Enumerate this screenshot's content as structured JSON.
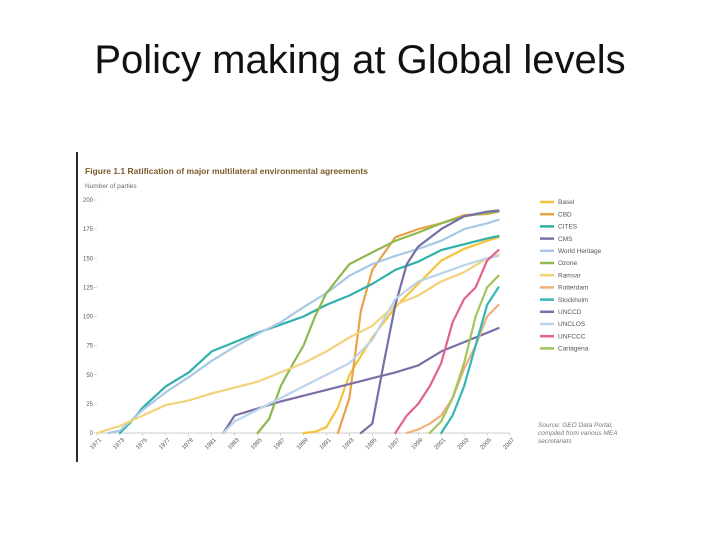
{
  "slide": {
    "title": "Policy making at Global  levels"
  },
  "chart_data": {
    "type": "line",
    "title": "Figure 1.1 Ratification of major multilateral environmental agreements",
    "ylabel": "Number of parties",
    "xlabel": "",
    "ylim": [
      0,
      200
    ],
    "xlim": [
      1971,
      2007
    ],
    "yticks": [
      0,
      25,
      50,
      75,
      100,
      125,
      150,
      175,
      200
    ],
    "xticks": [
      1971,
      1973,
      1975,
      1977,
      1979,
      1981,
      1983,
      1985,
      1987,
      1989,
      1991,
      1993,
      1995,
      1997,
      1999,
      2001,
      2003,
      2005,
      2007
    ],
    "source_note": "Source: GEO Data Portal, compiled from various MEA secretariats",
    "legend_position": "right",
    "series": [
      {
        "name": "Basel",
        "color": "#f5c43a",
        "points": [
          [
            1989,
            0
          ],
          [
            1990,
            1
          ],
          [
            1991,
            5
          ],
          [
            1992,
            22
          ],
          [
            1993,
            50
          ],
          [
            1995,
            82
          ],
          [
            1997,
            108
          ],
          [
            1999,
            128
          ],
          [
            2001,
            148
          ],
          [
            2003,
            158
          ],
          [
            2005,
            165
          ],
          [
            2006,
            168
          ]
        ]
      },
      {
        "name": "CBD",
        "color": "#e8a24a",
        "points": [
          [
            1992,
            0
          ],
          [
            1993,
            30
          ],
          [
            1994,
            105
          ],
          [
            1995,
            140
          ],
          [
            1997,
            168
          ],
          [
            1999,
            175
          ],
          [
            2001,
            180
          ],
          [
            2003,
            187
          ],
          [
            2005,
            188
          ],
          [
            2006,
            190
          ]
        ]
      },
      {
        "name": "CITES",
        "color": "#2fb0a8",
        "points": [
          [
            1973,
            0
          ],
          [
            1974,
            10
          ],
          [
            1975,
            22
          ],
          [
            1977,
            40
          ],
          [
            1979,
            52
          ],
          [
            1981,
            70
          ],
          [
            1983,
            78
          ],
          [
            1985,
            86
          ],
          [
            1987,
            93
          ],
          [
            1989,
            100
          ],
          [
            1991,
            110
          ],
          [
            1993,
            118
          ],
          [
            1995,
            128
          ],
          [
            1997,
            140
          ],
          [
            1999,
            147
          ],
          [
            2001,
            157
          ],
          [
            2003,
            162
          ],
          [
            2005,
            167
          ],
          [
            2006,
            169
          ]
        ]
      },
      {
        "name": "CMS",
        "color": "#7a6fa8",
        "points": [
          [
            1982,
            0
          ],
          [
            1983,
            15
          ],
          [
            1985,
            21
          ],
          [
            1987,
            27
          ],
          [
            1989,
            32
          ],
          [
            1991,
            37
          ],
          [
            1993,
            42
          ],
          [
            1995,
            47
          ],
          [
            1997,
            52
          ],
          [
            1999,
            58
          ],
          [
            2001,
            70
          ],
          [
            2003,
            78
          ],
          [
            2005,
            86
          ],
          [
            2006,
            90
          ]
        ]
      },
      {
        "name": "World Heritage",
        "color": "#a9c8e4",
        "points": [
          [
            1972,
            0
          ],
          [
            1973,
            2
          ],
          [
            1975,
            20
          ],
          [
            1977,
            35
          ],
          [
            1979,
            48
          ],
          [
            1981,
            62
          ],
          [
            1983,
            74
          ],
          [
            1985,
            85
          ],
          [
            1987,
            95
          ],
          [
            1989,
            108
          ],
          [
            1991,
            120
          ],
          [
            1993,
            135
          ],
          [
            1995,
            145
          ],
          [
            1997,
            152
          ],
          [
            1999,
            158
          ],
          [
            2001,
            165
          ],
          [
            2003,
            175
          ],
          [
            2005,
            180
          ],
          [
            2006,
            183
          ]
        ]
      },
      {
        "name": "Ozone",
        "color": "#8fb84e",
        "points": [
          [
            1985,
            0
          ],
          [
            1986,
            12
          ],
          [
            1987,
            40
          ],
          [
            1988,
            58
          ],
          [
            1989,
            75
          ],
          [
            1990,
            100
          ],
          [
            1991,
            120
          ],
          [
            1993,
            145
          ],
          [
            1995,
            155
          ],
          [
            1997,
            165
          ],
          [
            1999,
            172
          ],
          [
            2001,
            180
          ],
          [
            2003,
            186
          ],
          [
            2005,
            189
          ],
          [
            2006,
            190
          ]
        ]
      },
      {
        "name": "Ramsar",
        "color": "#f2d27a",
        "points": [
          [
            1971,
            0
          ],
          [
            1973,
            6
          ],
          [
            1975,
            15
          ],
          [
            1977,
            24
          ],
          [
            1979,
            28
          ],
          [
            1981,
            34
          ],
          [
            1983,
            39
          ],
          [
            1985,
            44
          ],
          [
            1987,
            52
          ],
          [
            1989,
            60
          ],
          [
            1991,
            70
          ],
          [
            1993,
            82
          ],
          [
            1995,
            92
          ],
          [
            1997,
            110
          ],
          [
            1999,
            118
          ],
          [
            2001,
            130
          ],
          [
            2003,
            138
          ],
          [
            2005,
            150
          ],
          [
            2006,
            153
          ]
        ]
      },
      {
        "name": "Rotterdam",
        "color": "#f0b07a",
        "points": [
          [
            1998,
            0
          ],
          [
            1999,
            3
          ],
          [
            2000,
            8
          ],
          [
            2001,
            15
          ],
          [
            2002,
            30
          ],
          [
            2003,
            55
          ],
          [
            2004,
            75
          ],
          [
            2005,
            100
          ],
          [
            2006,
            110
          ]
        ]
      },
      {
        "name": "Stockholm",
        "color": "#35b6b6",
        "points": [
          [
            2001,
            0
          ],
          [
            2002,
            15
          ],
          [
            2003,
            40
          ],
          [
            2004,
            75
          ],
          [
            2005,
            110
          ],
          [
            2006,
            125
          ]
        ]
      },
      {
        "name": "UNCCD",
        "color": "#7470a6",
        "points": [
          [
            1994,
            0
          ],
          [
            1995,
            8
          ],
          [
            1996,
            60
          ],
          [
            1997,
            110
          ],
          [
            1998,
            145
          ],
          [
            1999,
            160
          ],
          [
            2001,
            175
          ],
          [
            2003,
            186
          ],
          [
            2005,
            190
          ],
          [
            2006,
            191
          ]
        ]
      },
      {
        "name": "UNCLOS",
        "color": "#bcd3ea",
        "points": [
          [
            1982,
            0
          ],
          [
            1983,
            10
          ],
          [
            1985,
            20
          ],
          [
            1987,
            30
          ],
          [
            1989,
            40
          ],
          [
            1991,
            50
          ],
          [
            1993,
            60
          ],
          [
            1995,
            80
          ],
          [
            1997,
            115
          ],
          [
            1999,
            130
          ],
          [
            2001,
            137
          ],
          [
            2003,
            144
          ],
          [
            2005,
            150
          ],
          [
            2006,
            152
          ]
        ]
      },
      {
        "name": "UNFCCC",
        "color": "#e3628e",
        "points": [
          [
            1997,
            0
          ],
          [
            1998,
            15
          ],
          [
            1999,
            25
          ],
          [
            2000,
            40
          ],
          [
            2001,
            60
          ],
          [
            2002,
            95
          ],
          [
            2003,
            115
          ],
          [
            2004,
            125
          ],
          [
            2005,
            148
          ],
          [
            2006,
            157
          ]
        ]
      },
      {
        "name": "Cartagena",
        "color": "#a2c65e",
        "points": [
          [
            2000,
            0
          ],
          [
            2001,
            10
          ],
          [
            2002,
            30
          ],
          [
            2003,
            60
          ],
          [
            2004,
            100
          ],
          [
            2005,
            125
          ],
          [
            2006,
            135
          ]
        ]
      }
    ]
  }
}
